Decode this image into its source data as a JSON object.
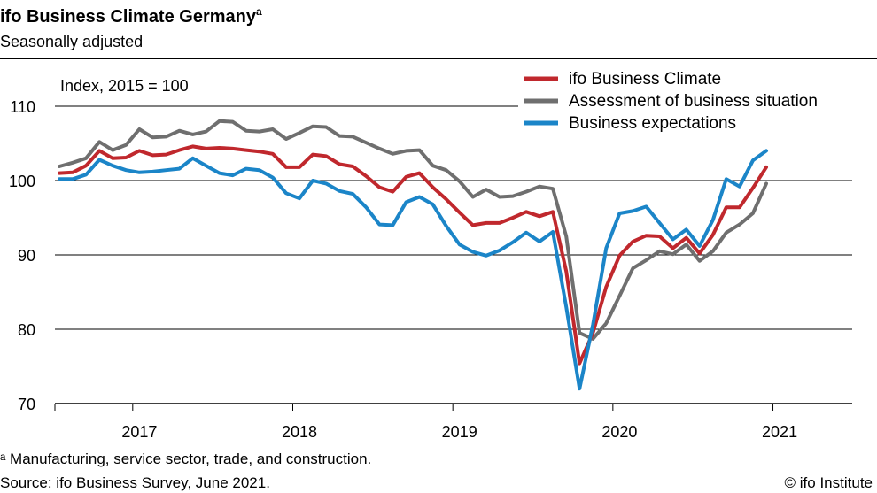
{
  "chart_data": {
    "type": "line",
    "title": "ifo Business Climate Germany",
    "title_superscript": "a",
    "subtitle": "Seasonally adjusted",
    "index_note": "Index, 2015 = 100",
    "ylim": [
      70,
      110
    ],
    "y_ticks": [
      70,
      80,
      90,
      100,
      110
    ],
    "x_tick_labels": [
      "2017",
      "2018",
      "2019",
      "2020",
      "2021"
    ],
    "x_start": "2016-07",
    "x_end": "2021-06",
    "legend_position": "top-right",
    "footnote": "ᵃ Manufacturing, service sector, trade, and construction.",
    "source": "Source: ifo Business Survey, June 2021.",
    "credit": "© ifo Institute",
    "series": [
      {
        "name": "ifo Business Climate",
        "color": "#c0282d",
        "values": [
          101.0,
          101.1,
          102.0,
          104.0,
          103.0,
          103.1,
          104.0,
          103.4,
          103.5,
          104.1,
          104.6,
          104.3,
          104.4,
          104.3,
          104.1,
          103.9,
          103.6,
          101.8,
          101.8,
          103.5,
          103.3,
          102.2,
          101.9,
          100.6,
          99.1,
          98.5,
          100.5,
          101.0,
          99.1,
          97.5,
          95.7,
          94.0,
          94.3,
          94.3,
          95.0,
          95.8,
          95.2,
          95.8,
          87.8,
          75.4,
          79.5,
          85.7,
          89.9,
          91.8,
          92.6,
          92.5,
          90.9,
          92.3,
          90.2,
          92.7,
          96.4,
          96.4,
          99.0,
          101.8
        ]
      },
      {
        "name": "Assessment of business situation",
        "color": "#6f6f6f",
        "values": [
          101.9,
          102.4,
          103.0,
          105.2,
          104.1,
          104.8,
          106.9,
          105.8,
          105.9,
          106.7,
          106.2,
          106.6,
          108.0,
          107.9,
          106.7,
          106.6,
          106.9,
          105.6,
          106.4,
          107.3,
          107.2,
          106.0,
          105.9,
          105.1,
          104.3,
          103.6,
          104.0,
          104.1,
          102.0,
          101.4,
          99.9,
          97.8,
          98.8,
          97.8,
          97.9,
          98.5,
          99.2,
          98.9,
          92.5,
          79.5,
          78.7,
          80.8,
          84.5,
          88.2,
          89.3,
          90.5,
          90.1,
          91.4,
          89.2,
          90.5,
          93.0,
          94.1,
          95.6,
          99.6
        ]
      },
      {
        "name": "Business expectations",
        "color": "#1b85c8",
        "values": [
          100.2,
          100.2,
          100.8,
          102.8,
          102.0,
          101.4,
          101.1,
          101.2,
          101.4,
          101.6,
          103.0,
          102.0,
          101.0,
          100.7,
          101.6,
          101.4,
          100.4,
          98.3,
          97.6,
          100.0,
          99.6,
          98.6,
          98.2,
          96.4,
          94.1,
          94.0,
          97.1,
          97.8,
          96.8,
          93.9,
          91.4,
          90.4,
          89.9,
          90.6,
          91.7,
          93.0,
          91.8,
          93.1,
          83.0,
          72.0,
          80.6,
          90.9,
          95.6,
          95.9,
          96.5,
          94.3,
          92.1,
          93.4,
          91.2,
          94.7,
          100.2,
          99.2,
          102.7,
          104.0
        ]
      }
    ]
  }
}
